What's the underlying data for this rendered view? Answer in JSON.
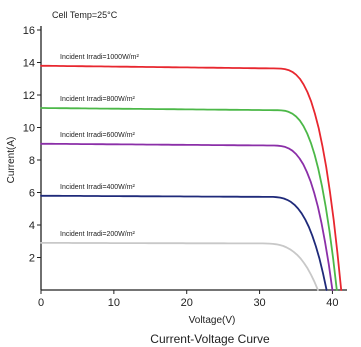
{
  "chart_data": {
    "type": "line",
    "title": "Current-Voltage Curve",
    "note": "Cell Temp=25°C",
    "xlabel": "Voltage(V)",
    "ylabel": "Current(A)",
    "xlim": [
      0,
      42
    ],
    "ylim": [
      0,
      16
    ],
    "xticks": [
      0,
      10,
      20,
      30,
      40
    ],
    "yticks": [
      2,
      4,
      6,
      8,
      10,
      12,
      14,
      16
    ],
    "series": [
      {
        "name": "Incident Irradi=1000W/m²",
        "color": "#e8272f",
        "isc": 13.8,
        "voc": 41.2,
        "knee": 32.0
      },
      {
        "name": "Incident Irradi=800W/m²",
        "color": "#4cb848",
        "isc": 11.2,
        "voc": 40.6,
        "knee": 32.0
      },
      {
        "name": "Incident Irradi=600W/m²",
        "color": "#8b2fa8",
        "isc": 9.0,
        "voc": 40.0,
        "knee": 31.5
      },
      {
        "name": "Incident Irradi=400W/m²",
        "color": "#1f2a7a",
        "isc": 5.8,
        "voc": 39.2,
        "knee": 31.0
      },
      {
        "name": "Incident Irradi=200W/m²",
        "color": "#c8c8c8",
        "isc": 2.9,
        "voc": 38.0,
        "knee": 30.0
      }
    ]
  }
}
